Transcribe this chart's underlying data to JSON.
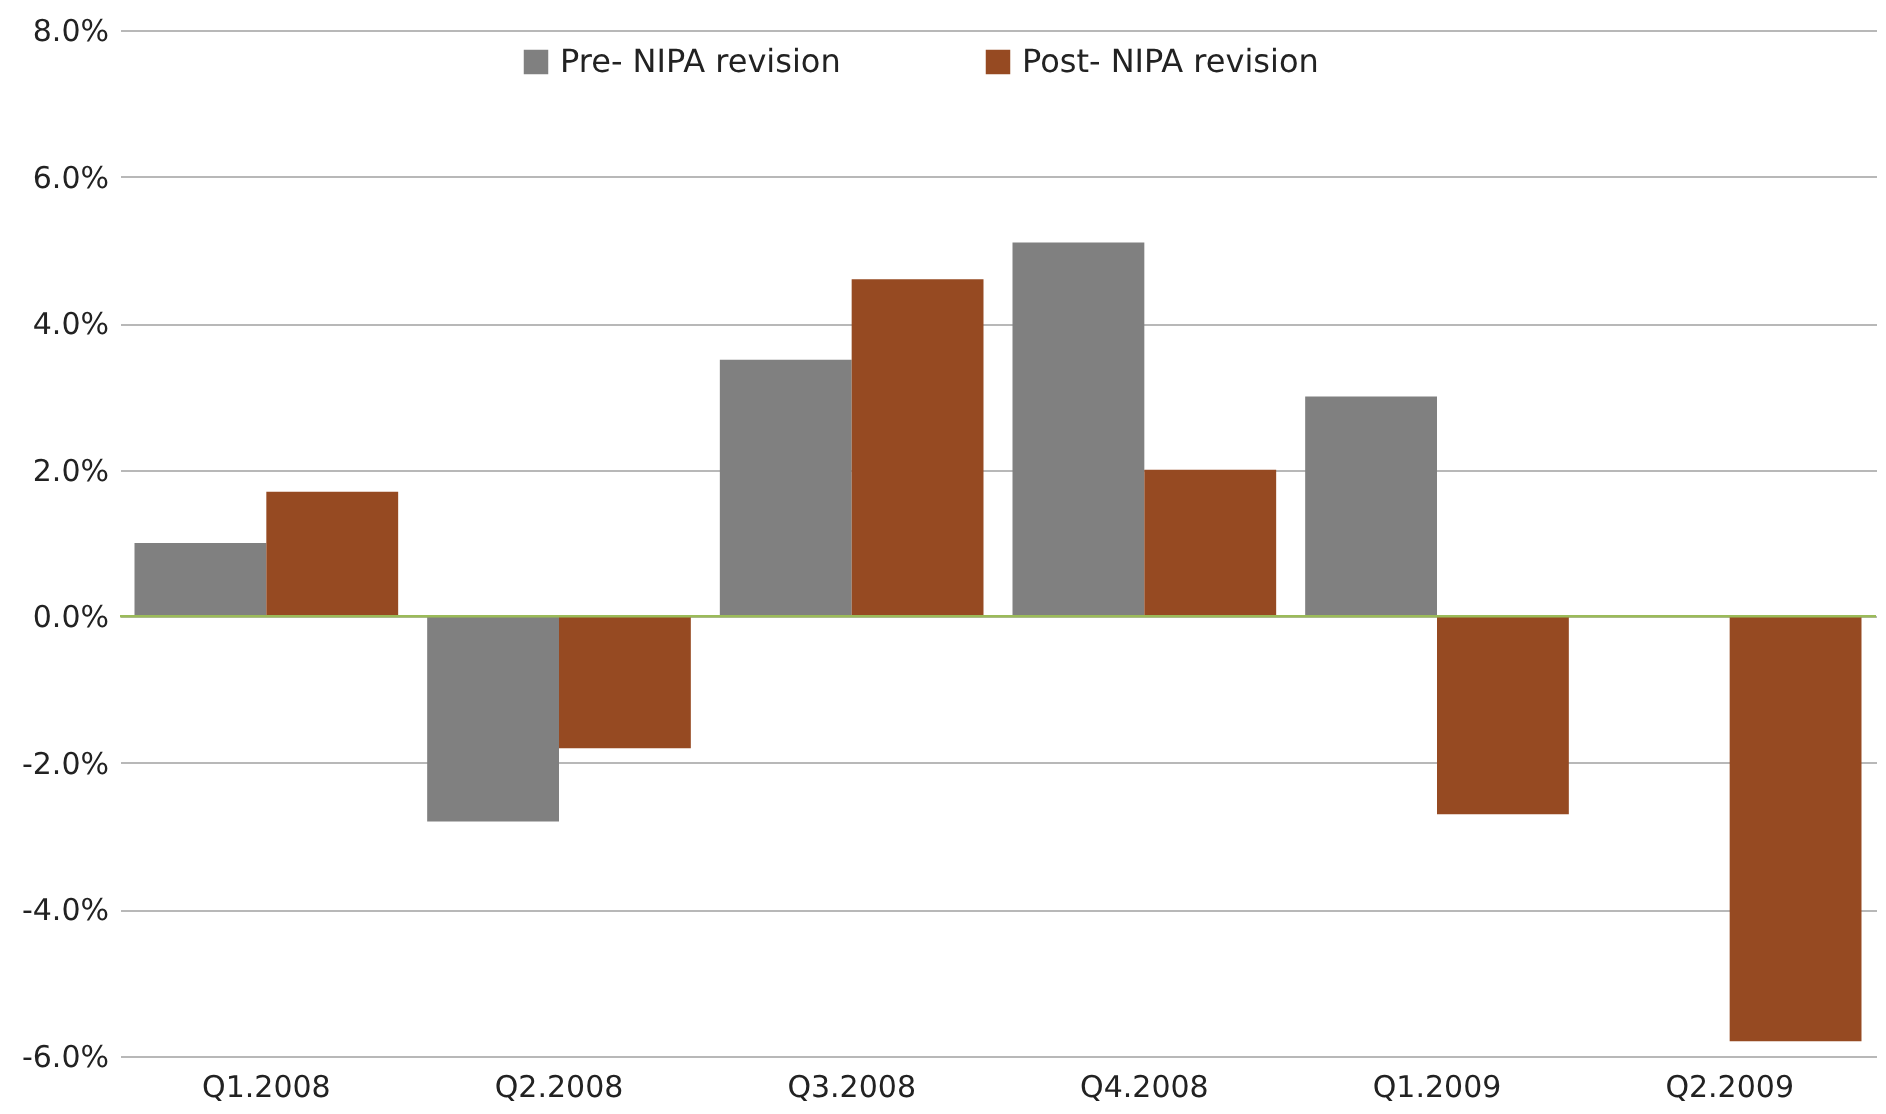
{
  "chart_data": {
    "type": "bar",
    "categories": [
      "Q1.2008",
      "Q2.2008",
      "Q3.2008",
      "Q4.2008",
      "Q1.2009",
      "Q2.2009"
    ],
    "series": [
      {
        "name": "Pre- NIPA revision",
        "color": "#808080",
        "values": [
          1.0,
          -2.8,
          3.5,
          5.1,
          3.0,
          null
        ]
      },
      {
        "name": "Post- NIPA revision",
        "color": "#964a22",
        "values": [
          1.7,
          -1.8,
          4.6,
          2.0,
          -2.7,
          -5.8
        ]
      }
    ],
    "ylim": [
      -6,
      8
    ],
    "yticks": [
      {
        "value": -6,
        "label": "-6.0%"
      },
      {
        "value": -4,
        "label": "-4.0%"
      },
      {
        "value": -2,
        "label": "-2.0%"
      },
      {
        "value": 0,
        "label": "0.0%"
      },
      {
        "value": 2,
        "label": "2.0%"
      },
      {
        "value": 4,
        "label": "4.0%"
      },
      {
        "value": 6,
        "label": "6.0%"
      },
      {
        "value": 8,
        "label": "8.0%"
      }
    ],
    "ref_lines": [
      {
        "axis": "y",
        "value": 0,
        "color": "#9bbb59"
      }
    ],
    "grid": "y",
    "legend": "top"
  }
}
